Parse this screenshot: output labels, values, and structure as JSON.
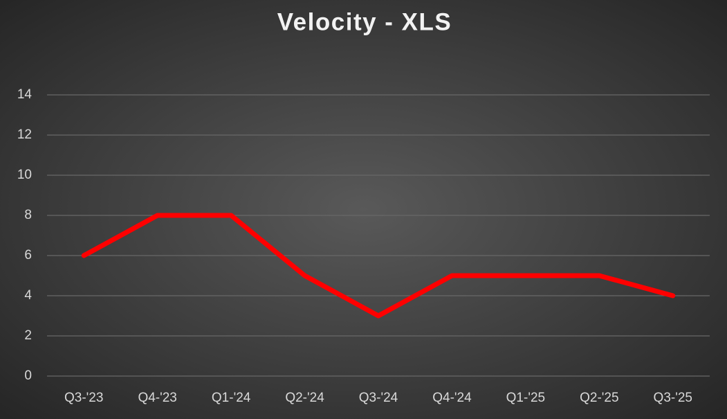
{
  "chart_data": {
    "type": "line",
    "title": "Velocity - XLS",
    "categories": [
      "Q3-'23",
      "Q4-'23",
      "Q1-'24",
      "Q2-'24",
      "Q3-'24",
      "Q4-'24",
      "Q1-'25",
      "Q2-'25",
      "Q3-'25"
    ],
    "values": [
      6,
      8,
      8,
      5,
      3,
      5,
      5,
      5,
      4
    ],
    "color": "#ff0000",
    "ylim": [
      0,
      14
    ],
    "yticks": [
      0,
      2,
      4,
      6,
      8,
      10,
      12,
      14
    ],
    "grid": true
  }
}
